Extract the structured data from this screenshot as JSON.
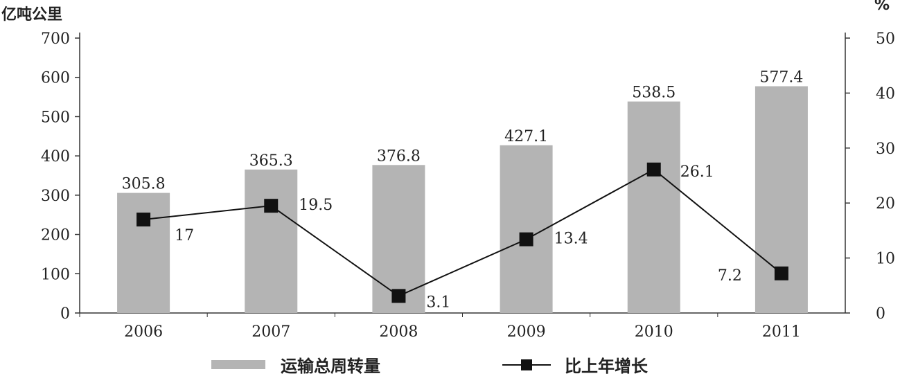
{
  "chart_data": {
    "type": "bar-line",
    "categories": [
      "2006",
      "2007",
      "2008",
      "2009",
      "2010",
      "2011"
    ],
    "series": [
      {
        "name": "运输总周转量",
        "type": "bar",
        "axis": "left",
        "values": [
          305.8,
          365.3,
          376.8,
          427.1,
          538.5,
          577.4
        ],
        "labels": [
          "305.8",
          "365.3",
          "376.8",
          "427.1",
          "538.5",
          "577.4"
        ],
        "color": "#b4b4b4"
      },
      {
        "name": "比上年增长",
        "type": "line",
        "axis": "right",
        "values": [
          17,
          19.5,
          3.1,
          13.4,
          26.1,
          7.2
        ],
        "labels": [
          "17",
          "19.5",
          "3.1",
          "13.4",
          "26.1",
          "7.2"
        ],
        "color": "#111111"
      }
    ],
    "y_left": {
      "unit": "亿吨公里",
      "ylim": [
        0,
        700
      ],
      "ticks": [
        "0",
        "100",
        "200",
        "300",
        "400",
        "500",
        "600",
        "700"
      ]
    },
    "y_right": {
      "unit": "%",
      "ylim": [
        0,
        50
      ],
      "ticks": [
        "0",
        "10",
        "20",
        "30",
        "40",
        "50"
      ]
    },
    "legend": {
      "position": "bottom",
      "items": [
        "运输总周转量",
        "比上年增长"
      ]
    },
    "grid": false
  }
}
